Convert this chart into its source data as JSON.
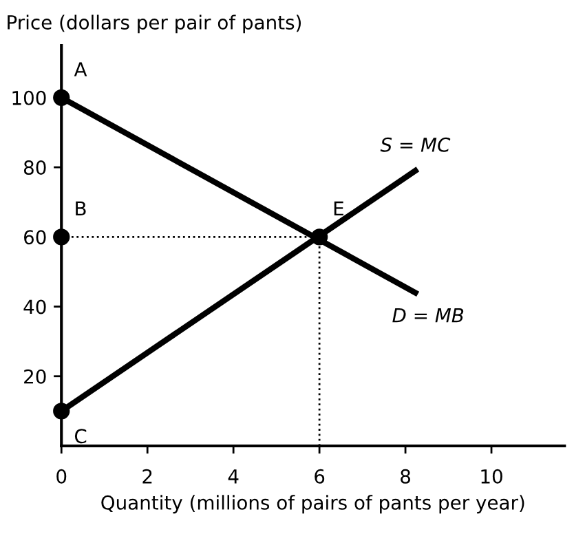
{
  "chart_data": {
    "type": "line",
    "xlabel": "Quantity (millions of pairs of pants per year)",
    "ylabel": "Price (dollars per pair of pants)",
    "xlim": [
      0,
      11.7
    ],
    "ylim": [
      0,
      115
    ],
    "xticks": [
      0,
      2,
      4,
      6,
      8,
      10
    ],
    "yticks": [
      20,
      40,
      60,
      80,
      100
    ],
    "grid": false,
    "legend": false,
    "series": [
      {
        "name": "D = MB",
        "color": "#000000",
        "x": [
          0,
          8.23
        ],
        "values": [
          100,
          44
        ],
        "line_style": "solid",
        "marker": "none"
      },
      {
        "name": "S = MC",
        "color": "#000000",
        "x": [
          0,
          8.23
        ],
        "values": [
          10,
          79
        ],
        "line_style": "solid",
        "marker": "none"
      },
      {
        "color": "#000000",
        "x": [
          0,
          6
        ],
        "values": [
          60,
          60
        ],
        "line_style": "dotted",
        "marker": "none"
      },
      {
        "color": "#000000",
        "x": [
          6,
          6
        ],
        "values": [
          0,
          60
        ],
        "line_style": "dotted",
        "marker": "none"
      },
      {
        "type": "scatter",
        "color": "#000000",
        "x": [
          0,
          0,
          0,
          6
        ],
        "values": [
          100,
          60,
          10,
          60
        ],
        "marker": "circle"
      }
    ],
    "annotations": [
      "A",
      "B",
      "C",
      "E"
    ]
  }
}
